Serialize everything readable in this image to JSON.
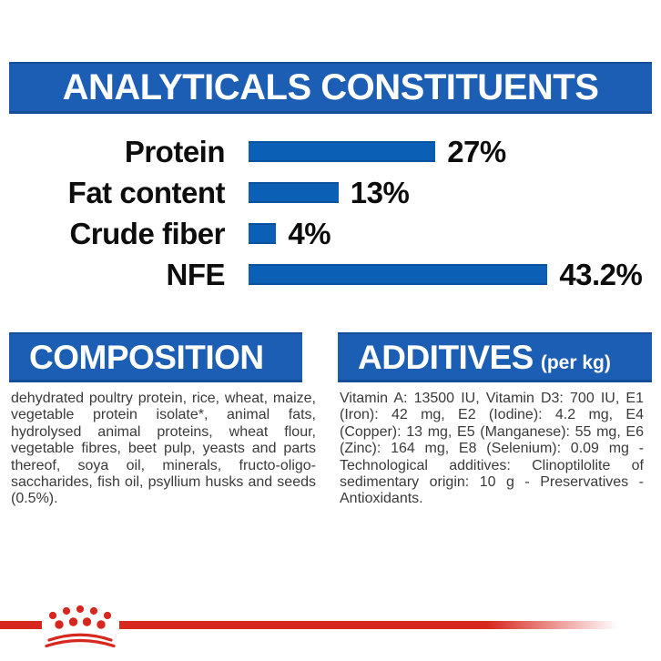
{
  "colors": {
    "header_blue": "#1B5EB4",
    "bar_blue": "#0B5FB5",
    "brand_red": "#D7281F",
    "chart_text": "#0d0d0d",
    "body_text": "#3a3a3a"
  },
  "analytics": {
    "title": "ANALYTICALS CONSTITUENTS",
    "chart_data": {
      "type": "bar",
      "orientation": "horizontal",
      "title": "ANALYTICALS CONSTITUENTS",
      "categories": [
        "Protein",
        "Fat content",
        "Crude fiber",
        "NFE"
      ],
      "values": [
        27,
        13,
        4,
        43.2
      ],
      "value_labels": [
        "27%",
        "13%",
        "4%",
        "43.2%"
      ],
      "unit": "%",
      "xlim": [
        0,
        45
      ],
      "grid": false,
      "legend": false,
      "bar_color": "#0B5FB5"
    }
  },
  "composition": {
    "title": "COMPOSITION",
    "body": "dehydrated poultry protein, rice, wheat, maize, vegetable protein isolate*, animal fats, hydrolysed animal proteins, wheat flour, vegetable fibres, beet pulp, yeasts and parts thereof, soya oil, minerals, fructo-oligo-saccharides, fish oil, psyllium husks and seeds (0.5%)."
  },
  "additives": {
    "title": "ADDITIVES",
    "unit_suffix": "(per kg)",
    "body": "Vitamin A: 13500 IU, Vitamin D3: 700 IU, E1 (Iron): 42 mg, E2 (Iodine): 4.2 mg, E4 (Copper): 13 mg, E5 (Manganese): 55 mg, E6 (Zinc): 164 mg, E8 (Selenium): 0.09 mg -Technological additives: Clinoptilolite of sedimentary origin: 10 g - Preservatives - Antioxidants."
  },
  "footer": {
    "logo": "royal-canin-crown-logo"
  }
}
